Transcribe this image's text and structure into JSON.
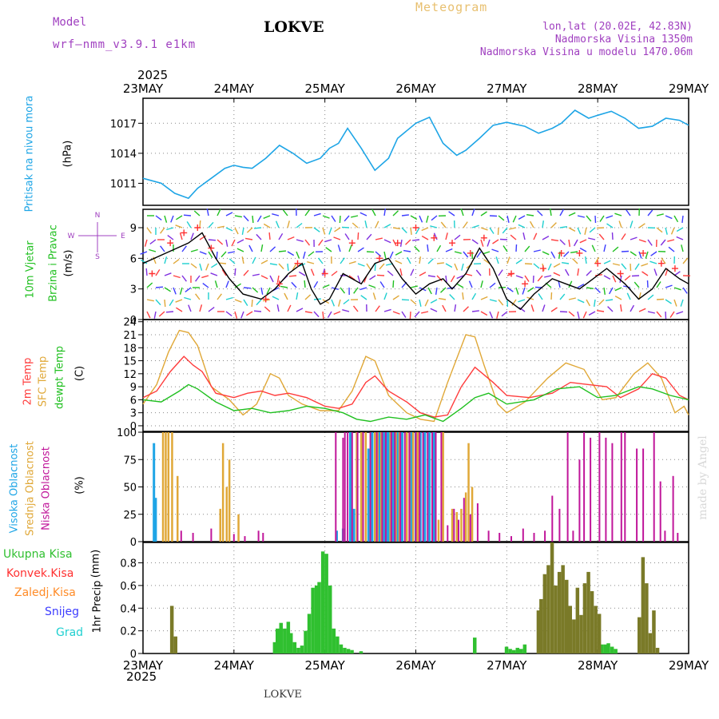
{
  "header": {
    "model_label": "Model",
    "model_name": "wrf—nmm_v3.9.1 e1km",
    "location": "LOKVE",
    "chart_kind": "Meteogram",
    "coords": "lon,lat (20.02E, 42.83N)",
    "elevation": "Nadmorska Visina 1350m",
    "model_elevation": "Nadmorska Visina u modelu 1470.06m",
    "footer_location": "LOKVE",
    "watermark": "made by Angel",
    "year": "2025"
  },
  "colors": {
    "pressure": "#1ea5e6",
    "wind_speed": "#000000",
    "gust": "#ff3030",
    "temp2m": "#ff3c3c",
    "sfc_temp": "#e0a838",
    "dewpoint": "#20c020",
    "cloud_high": "#1ea5e6",
    "cloud_mid": "#e0a838",
    "cloud_low": "#c0169a",
    "precip_total": "#30c030",
    "precip_conv": "#ff3030",
    "precip_froz": "#ff8c28",
    "snow": "#3c3cff",
    "hail": "#20d0d0",
    "precip_mix": "#7a7a28",
    "header_purple": "#a040c0",
    "header_gold": "#e8c070"
  },
  "chart_data": [
    {
      "type": "line",
      "title": "",
      "ylabel": "Pritisak na nivou mora",
      "unit": "(hPa)",
      "x_ticks": [
        "23MAY",
        "24MAY",
        "25MAY",
        "26MAY",
        "27MAY",
        "28MAY",
        "29MAY"
      ],
      "ylim": [
        1008.8,
        1019.5
      ],
      "y_ticks": [
        1011,
        1014,
        1017
      ],
      "grid": true,
      "series": [
        {
          "name": "Pritisak na nivou mora",
          "x": [
            0,
            0.2,
            0.35,
            0.5,
            0.6,
            0.75,
            0.9,
            1.0,
            1.1,
            1.2,
            1.35,
            1.5,
            1.65,
            1.8,
            1.95,
            2.05,
            2.15,
            2.25,
            2.4,
            2.55,
            2.7,
            2.8,
            3.0,
            3.15,
            3.3,
            3.45,
            3.55,
            3.7,
            3.85,
            4.0,
            4.2,
            4.35,
            4.5,
            4.6,
            4.75,
            4.9,
            5.0,
            5.15,
            5.3,
            5.45,
            5.6,
            5.75,
            5.9,
            6.0
          ],
          "y": [
            1011.5,
            1011.0,
            1010.0,
            1009.5,
            1010.5,
            1011.5,
            1012.5,
            1012.8,
            1012.6,
            1012.5,
            1013.5,
            1014.8,
            1014.0,
            1013.0,
            1013.5,
            1014.5,
            1015.0,
            1016.5,
            1014.5,
            1012.3,
            1013.5,
            1015.5,
            1017.0,
            1017.6,
            1015.0,
            1013.8,
            1014.3,
            1015.5,
            1016.8,
            1017.1,
            1016.7,
            1016.0,
            1016.5,
            1017.0,
            1018.3,
            1017.5,
            1017.8,
            1018.2,
            1017.5,
            1016.5,
            1016.7,
            1017.5,
            1017.3,
            1016.8
          ]
        }
      ]
    },
    {
      "type": "line",
      "title": "",
      "ylabel": "10m Vjetar Brzina i Pravac",
      "unit": "(m/s)",
      "direction_key": [
        "N",
        "E",
        "W",
        "S"
      ],
      "ylim": [
        0,
        10.8
      ],
      "y_ticks": [
        0,
        3,
        6,
        9
      ],
      "grid": true,
      "series": [
        {
          "name": "wind speed",
          "x": [
            0,
            0.25,
            0.5,
            0.65,
            0.8,
            0.95,
            1.1,
            1.3,
            1.45,
            1.6,
            1.75,
            1.85,
            1.95,
            2.05,
            2.2,
            2.4,
            2.55,
            2.7,
            2.85,
            3.0,
            3.15,
            3.3,
            3.4,
            3.55,
            3.7,
            3.85,
            4.0,
            4.15,
            4.3,
            4.5,
            4.65,
            4.8,
            4.95,
            5.1,
            5.3,
            5.45,
            5.6,
            5.75,
            5.9,
            6.0
          ],
          "y": [
            5.5,
            6.5,
            7.5,
            8.5,
            6.0,
            4.0,
            2.5,
            2.0,
            3.0,
            4.5,
            5.5,
            3.0,
            1.5,
            2.0,
            4.5,
            3.5,
            5.5,
            6.0,
            4.0,
            2.5,
            3.5,
            4.0,
            3.0,
            4.5,
            7.0,
            5.0,
            2.0,
            1.0,
            2.5,
            4.0,
            3.5,
            3.0,
            4.0,
            5.0,
            3.5,
            2.0,
            3.0,
            5.0,
            4.0,
            3.5
          ]
        },
        {
          "name": "gust",
          "x": [
            0.1,
            0.3,
            0.45,
            0.6,
            0.75,
            1.35,
            1.5,
            1.7,
            2.0,
            2.3,
            2.6,
            2.8,
            3.0,
            3.2,
            3.4,
            3.6,
            3.75,
            4.05,
            4.2,
            4.4,
            4.6,
            4.8,
            5.0,
            5.25,
            5.5,
            5.7,
            5.85
          ],
          "y": [
            4.5,
            7.5,
            8.5,
            9.0,
            7.0,
            2.0,
            3.5,
            5.5,
            4.5,
            7.5,
            6.0,
            7.5,
            9.0,
            8.0,
            7.5,
            6.5,
            8.0,
            4.5,
            3.5,
            5.0,
            6.5,
            6.5,
            5.5,
            4.5,
            6.5,
            5.5,
            5.0
          ]
        }
      ]
    },
    {
      "type": "line",
      "title": "",
      "ylabel": "2m Temp / SFC Temp / dewpt Temp",
      "unit": "(C)",
      "ylim": [
        -1.3,
        24.5
      ],
      "y_ticks": [
        0,
        3,
        6,
        9,
        12,
        15,
        18,
        21,
        24
      ],
      "grid": true,
      "series": [
        {
          "name": "2m Temp",
          "x": [
            0,
            0.15,
            0.3,
            0.45,
            0.55,
            0.65,
            0.8,
            1.0,
            1.15,
            1.3,
            1.45,
            1.6,
            1.8,
            2.0,
            2.15,
            2.3,
            2.45,
            2.55,
            2.7,
            2.9,
            3.05,
            3.2,
            3.35,
            3.5,
            3.65,
            3.85,
            4.0,
            4.25,
            4.5,
            4.7,
            4.9,
            5.1,
            5.25,
            5.45,
            5.6,
            5.75,
            5.9,
            6.0
          ],
          "y": [
            6.5,
            8.0,
            12.5,
            16.0,
            14.0,
            12.5,
            7.5,
            6.5,
            7.5,
            8.0,
            7.0,
            7.5,
            6.5,
            4.5,
            4.0,
            5.0,
            10.0,
            11.5,
            8.0,
            5.5,
            3.0,
            2.0,
            2.5,
            9.0,
            13.5,
            10.0,
            7.0,
            6.5,
            7.5,
            10.0,
            9.5,
            9.0,
            6.5,
            8.5,
            12.0,
            11.0,
            7.0,
            6.0
          ]
        },
        {
          "name": "SFC Temp",
          "x": [
            0,
            0.15,
            0.28,
            0.4,
            0.5,
            0.6,
            0.75,
            0.95,
            1.1,
            1.25,
            1.4,
            1.5,
            1.6,
            1.75,
            1.95,
            2.15,
            2.3,
            2.45,
            2.55,
            2.7,
            2.9,
            3.05,
            3.2,
            3.35,
            3.55,
            3.65,
            3.75,
            3.9,
            4.0,
            4.2,
            4.45,
            4.65,
            4.85,
            5.05,
            5.2,
            5.4,
            5.55,
            5.7,
            5.85,
            5.95,
            6.0
          ],
          "y": [
            5.0,
            9.5,
            17.0,
            22.0,
            21.5,
            18.5,
            9.0,
            6.0,
            2.5,
            5.0,
            12.0,
            11.0,
            7.0,
            5.0,
            3.5,
            3.5,
            8.0,
            16.0,
            15.0,
            7.0,
            3.0,
            1.5,
            1.0,
            10.0,
            21.0,
            20.5,
            14.0,
            5.0,
            3.0,
            5.5,
            11.0,
            14.5,
            13.0,
            6.0,
            6.5,
            12.0,
            14.5,
            11.0,
            3.0,
            4.5,
            2.5
          ]
        },
        {
          "name": "dewpt Temp",
          "x": [
            0,
            0.2,
            0.4,
            0.5,
            0.6,
            0.8,
            1.0,
            1.2,
            1.4,
            1.6,
            1.8,
            2.0,
            2.2,
            2.35,
            2.5,
            2.7,
            2.9,
            3.1,
            3.3,
            3.5,
            3.65,
            3.8,
            4.0,
            4.3,
            4.55,
            4.8,
            5.0,
            5.2,
            5.45,
            5.6,
            5.8,
            6.0
          ],
          "y": [
            6.0,
            5.5,
            8.0,
            9.5,
            8.5,
            5.5,
            3.5,
            4.0,
            3.0,
            3.5,
            4.5,
            4.0,
            3.0,
            1.5,
            1.0,
            2.0,
            1.5,
            2.5,
            1.0,
            4.0,
            6.5,
            7.5,
            5.0,
            6.0,
            8.5,
            9.0,
            6.5,
            7.0,
            9.0,
            8.5,
            7.0,
            6.0
          ]
        }
      ]
    },
    {
      "type": "bar",
      "title": "",
      "ylabel": "Visoka Oblacnost / Srednja Oblacnost / Niska Oblacnost",
      "unit": "(%)",
      "ylim": [
        0,
        100
      ],
      "y_ticks": [
        0,
        25,
        50,
        75,
        100
      ],
      "grid": true,
      "series": [
        {
          "name": "Visoka Oblacnost",
          "x": [
            0.12,
            0.14,
            2.13,
            2.2,
            2.28,
            2.32,
            2.48,
            2.52,
            2.6,
            2.65,
            2.68,
            2.7,
            2.75,
            2.8,
            2.85,
            2.95,
            3.0,
            3.05,
            3.1,
            3.15,
            3.2
          ],
          "y": [
            90,
            40,
            10,
            12,
            100,
            30,
            85,
            100,
            100,
            100,
            100,
            100,
            100,
            100,
            100,
            100,
            100,
            100,
            100,
            100,
            100
          ]
        },
        {
          "name": "Srednja Oblacnost",
          "x": [
            0.22,
            0.25,
            0.28,
            0.32,
            0.38,
            0.85,
            0.88,
            0.92,
            0.95,
            1.05,
            2.35,
            2.4,
            2.45,
            2.55,
            2.58,
            2.62,
            2.72,
            2.78,
            2.82,
            2.9,
            2.93,
            2.97,
            3.02,
            3.25,
            3.3,
            3.4,
            3.45,
            3.5,
            3.55,
            3.58,
            3.62
          ],
          "y": [
            100,
            100,
            100,
            100,
            60,
            30,
            90,
            50,
            75,
            25,
            100,
            100,
            100,
            100,
            100,
            100,
            100,
            100,
            100,
            100,
            100,
            100,
            100,
            20,
            100,
            30,
            27,
            30,
            45,
            90,
            50
          ]
        },
        {
          "name": "Niska Oblacnost",
          "x": [
            0.42,
            0.55,
            0.75,
            1.0,
            1.12,
            1.27,
            1.32,
            2.12,
            2.2,
            2.22,
            2.25,
            2.3,
            2.36,
            2.42,
            2.5,
            2.57,
            2.63,
            2.67,
            2.73,
            2.77,
            2.83,
            2.88,
            2.93,
            3.0,
            3.04,
            3.08,
            3.13,
            3.18,
            3.22,
            3.28,
            3.35,
            3.42,
            3.47,
            3.53,
            3.6,
            3.68,
            3.8,
            3.92,
            4.05,
            4.18,
            4.3,
            4.42,
            4.5,
            4.58,
            4.67,
            4.73,
            4.8,
            4.85,
            4.92,
            5.02,
            5.09,
            5.16,
            5.26,
            5.3,
            5.43,
            5.5,
            5.62,
            5.69,
            5.74,
            5.83,
            5.88
          ],
          "y": [
            10,
            8,
            12,
            7,
            5,
            10,
            8,
            100,
            95,
            100,
            100,
            100,
            100,
            100,
            100,
            100,
            100,
            100,
            100,
            100,
            100,
            100,
            100,
            100,
            100,
            100,
            100,
            100,
            100,
            100,
            15,
            30,
            20,
            40,
            25,
            35,
            10,
            8,
            5,
            12,
            8,
            10,
            42,
            30,
            100,
            10,
            75,
            100,
            95,
            100,
            95,
            90,
            100,
            100,
            85,
            85,
            100,
            55,
            10,
            60,
            8
          ]
        }
      ]
    },
    {
      "type": "bar",
      "title": "",
      "ylabel": "1hr Precip",
      "unit": "(mm)",
      "legend": [
        "Ukupna Kisa",
        "Konvek.Kisa",
        "Zaledj.Kisa",
        "Snijeg",
        "Grad"
      ],
      "ylim": [
        0,
        0.98
      ],
      "y_ticks": [
        0,
        0.2,
        0.4,
        0.6,
        0.8
      ],
      "x_ticks": [
        "23MAY",
        "24MAY",
        "25MAY",
        "26MAY",
        "27MAY",
        "28MAY",
        "29MAY"
      ],
      "grid": true,
      "series": [
        {
          "name": "Ukupna Kisa",
          "x": [
            1.45,
            1.48,
            1.52,
            1.56,
            1.6,
            1.63,
            1.67,
            1.71,
            1.75,
            1.79,
            1.83,
            1.87,
            1.91,
            1.94,
            1.98,
            2.02,
            2.06,
            2.1,
            2.14,
            2.18,
            2.22,
            2.26,
            2.3,
            2.4,
            3.65,
            4.0,
            4.04,
            4.08,
            4.12,
            4.16,
            4.2,
            5.05,
            5.09,
            5.12,
            5.16,
            5.2
          ],
          "y": [
            0.1,
            0.22,
            0.27,
            0.22,
            0.28,
            0.18,
            0.1,
            0.05,
            0.07,
            0.2,
            0.35,
            0.58,
            0.6,
            0.63,
            0.9,
            0.88,
            0.6,
            0.22,
            0.15,
            0.08,
            0.05,
            0.04,
            0.03,
            0.02,
            0.14,
            0.06,
            0.04,
            0.03,
            0.05,
            0.04,
            0.08,
            0.08,
            0.08,
            0.09,
            0.06,
            0.04
          ]
        },
        {
          "name": "mixed",
          "x": [
            0.32,
            0.36,
            4.35,
            4.38,
            4.42,
            4.46,
            4.5,
            4.54,
            4.58,
            4.62,
            4.66,
            4.7,
            4.74,
            4.78,
            4.82,
            4.86,
            4.9,
            4.94,
            4.98,
            5.02,
            5.46,
            5.5,
            5.54,
            5.58,
            5.62,
            5.66
          ],
          "y": [
            0.42,
            0.15,
            0.38,
            0.48,
            0.7,
            0.78,
            0.98,
            0.6,
            0.72,
            0.78,
            0.65,
            0.42,
            0.3,
            0.58,
            0.34,
            0.62,
            0.72,
            0.55,
            0.42,
            0.35,
            0.32,
            0.85,
            0.62,
            0.18,
            0.38,
            0.05
          ]
        }
      ]
    }
  ]
}
